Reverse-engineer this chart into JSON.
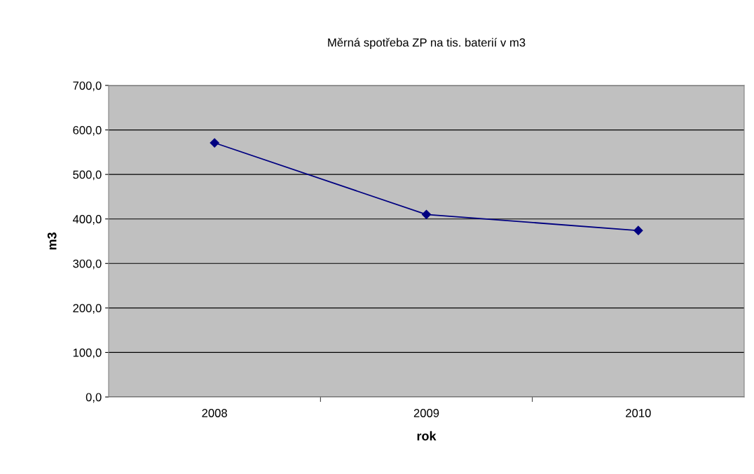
{
  "chart_data": {
    "type": "line",
    "title": "Měrná spotřeba ZP na tis. baterií v m3",
    "xlabel": "rok",
    "ylabel": "m3",
    "categories": [
      "2008",
      "2009",
      "2010"
    ],
    "series": [
      {
        "color": "#000080",
        "values": [
          571,
          410,
          374
        ]
      }
    ],
    "ylim": [
      0,
      700
    ],
    "yticks": [
      {
        "value": 0,
        "label": "0,0"
      },
      {
        "value": 100,
        "label": "100,0"
      },
      {
        "value": 200,
        "label": "200,0"
      },
      {
        "value": 300,
        "label": "300,0"
      },
      {
        "value": 400,
        "label": "400,0"
      },
      {
        "value": 500,
        "label": "500,0"
      },
      {
        "value": 600,
        "label": "600,0"
      },
      {
        "value": 700,
        "label": "700,0"
      }
    ],
    "grid": "y",
    "marker": "diamond",
    "line_style": "solid",
    "legend": false
  }
}
